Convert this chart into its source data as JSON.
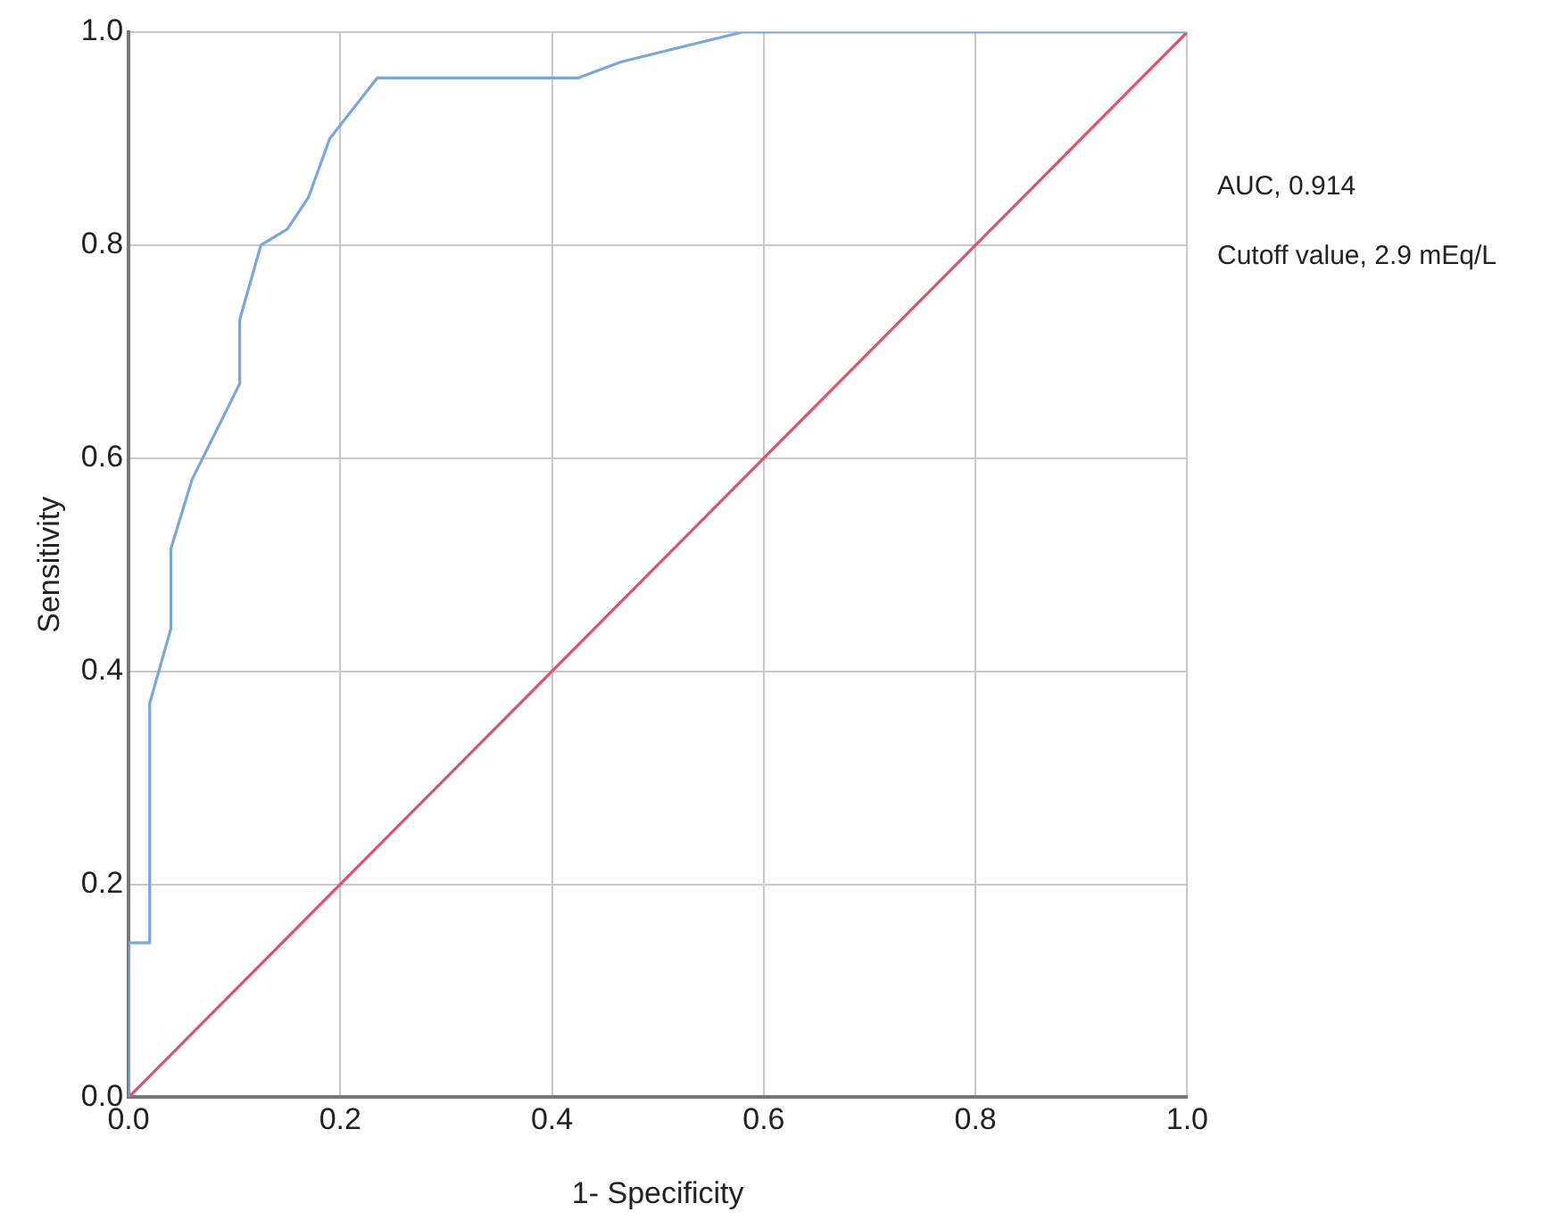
{
  "chart_data": {
    "type": "line",
    "xlabel": "1- Specificity",
    "ylabel": "Sensitivity",
    "series": [
      {
        "color": "#7aa6dc",
        "x": [
          0,
          0,
          0.02,
          0.02,
          0.04,
          0.04,
          0.06,
          0.105,
          0.105,
          0.125,
          0.15,
          0.17,
          0.19,
          0.235,
          0.425,
          0.465,
          0.58,
          1
        ],
        "values": [
          0,
          0.145,
          0.145,
          0.37,
          0.44,
          0.515,
          0.58,
          0.67,
          0.73,
          0.8,
          0.815,
          0.845,
          0.9,
          0.957,
          0.957,
          0.972,
          1,
          1
        ]
      },
      {
        "color": "#e0506a",
        "x": [
          0,
          1
        ],
        "values": [
          0,
          1
        ]
      }
    ],
    "xlim": [
      0,
      1
    ],
    "ylim": [
      0,
      1
    ],
    "xticks": [
      {
        "value": 0,
        "label": "0.0"
      },
      {
        "value": 0.2,
        "label": "0.2"
      },
      {
        "value": 0.4,
        "label": "0.4"
      },
      {
        "value": 0.6,
        "label": "0.6"
      },
      {
        "value": 0.8,
        "label": "0.8"
      },
      {
        "value": 1,
        "label": "1.0"
      }
    ],
    "yticks": [
      {
        "value": 0,
        "label": "0.0"
      },
      {
        "value": 0.2,
        "label": "0.2"
      },
      {
        "value": 0.4,
        "label": "0.4"
      },
      {
        "value": 0.6,
        "label": "0.6"
      },
      {
        "value": 0.8,
        "label": "0.8"
      },
      {
        "value": 1,
        "label": "1.0"
      }
    ],
    "grid": true,
    "legend": false,
    "marker": "none",
    "line_style": "solid",
    "annotations": [
      "AUC, 0.914",
      "Cutoff value, 2.9 mEq/L"
    ]
  }
}
